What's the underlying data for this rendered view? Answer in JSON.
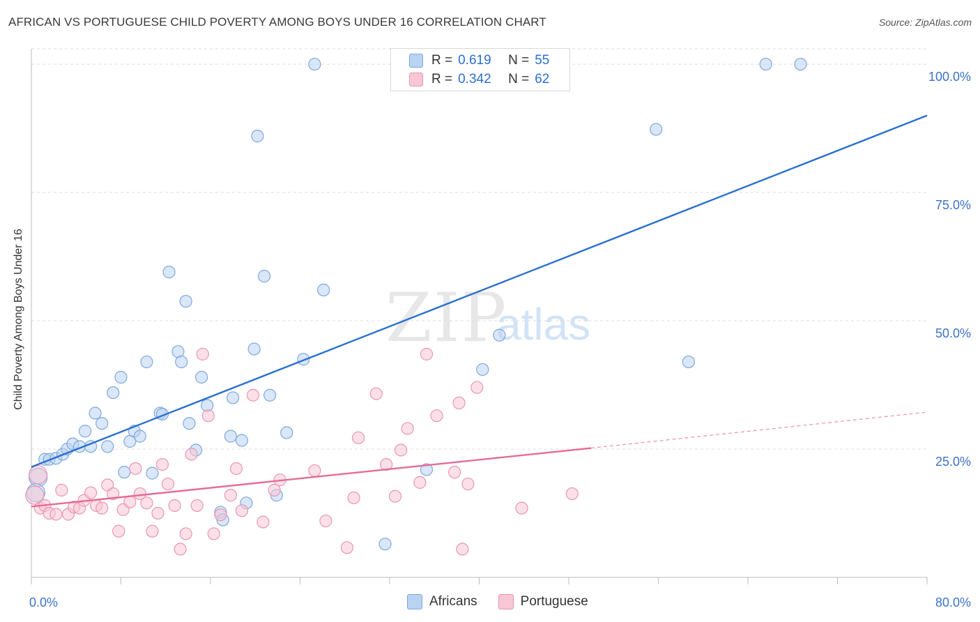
{
  "title": "AFRICAN VS PORTUGUESE CHILD POVERTY AMONG BOYS UNDER 16 CORRELATION CHART",
  "source": "Source: ZipAtlas.com",
  "watermark": {
    "zip": "ZIP",
    "atlas": "atlas"
  },
  "legend_top": [
    {
      "r_label": "R =",
      "r_value": "0.619",
      "n_label": "N =",
      "n_value": "55"
    },
    {
      "r_label": "R =",
      "r_value": "0.342",
      "n_label": "N =",
      "n_value": "62"
    }
  ],
  "bottom_legend": [
    "Africans",
    "Portuguese"
  ],
  "colors": {
    "africans_fill": "#b9d3f3",
    "africans_stroke": "#7ea8dc",
    "africans_line": "#2a6fd1",
    "portuguese_fill": "#f8c6d5",
    "portuguese_stroke": "#e896b2",
    "portuguese_line": "#e56b98",
    "tick_label": "#3b72c9",
    "grid": "#dddddd"
  },
  "chart_data": {
    "type": "scatter",
    "title": "AFRICAN VS PORTUGUESE CHILD POVERTY AMONG BOYS UNDER 16 CORRELATION CHART",
    "ylabel": "Child Poverty Among Boys Under 16",
    "xlabel": "",
    "xlim": [
      0,
      80
    ],
    "ylim": [
      0,
      103
    ],
    "x_tick_labels": [
      "0.0%",
      "80.0%"
    ],
    "y_ticks": [
      25,
      50,
      75,
      100
    ],
    "y_tick_labels": [
      "25.0%",
      "50.0%",
      "75.0%",
      "100.0%"
    ],
    "grid": "horizontal dashed",
    "series": [
      {
        "name": "Africans",
        "points": [
          [
            0.6,
            19.5
          ],
          [
            0.4,
            16.5
          ],
          [
            1.2,
            23.0
          ],
          [
            1.6,
            23.0
          ],
          [
            2.2,
            23.2
          ],
          [
            2.8,
            24.0
          ],
          [
            3.2,
            25.0
          ],
          [
            3.7,
            26.0
          ],
          [
            4.3,
            25.5
          ],
          [
            4.8,
            28.5
          ],
          [
            5.3,
            25.5
          ],
          [
            5.7,
            32.0
          ],
          [
            6.3,
            30.0
          ],
          [
            6.8,
            25.5
          ],
          [
            7.3,
            36.0
          ],
          [
            8.0,
            39.0
          ],
          [
            8.3,
            20.5
          ],
          [
            8.8,
            26.5
          ],
          [
            9.2,
            28.5
          ],
          [
            9.7,
            27.5
          ],
          [
            10.3,
            42.0
          ],
          [
            10.8,
            20.3
          ],
          [
            11.5,
            32.0
          ],
          [
            11.7,
            31.8
          ],
          [
            12.3,
            59.5
          ],
          [
            13.1,
            44.0
          ],
          [
            13.4,
            42.0
          ],
          [
            13.8,
            53.8
          ],
          [
            14.1,
            30.0
          ],
          [
            14.7,
            24.8
          ],
          [
            15.2,
            39.0
          ],
          [
            15.7,
            33.5
          ],
          [
            16.9,
            12.7
          ],
          [
            17.1,
            11.2
          ],
          [
            17.8,
            27.5
          ],
          [
            18.0,
            35.0
          ],
          [
            18.8,
            26.7
          ],
          [
            19.2,
            14.5
          ],
          [
            19.9,
            44.5
          ],
          [
            20.2,
            86.0
          ],
          [
            20.8,
            58.7
          ],
          [
            21.3,
            35.5
          ],
          [
            21.9,
            16.0
          ],
          [
            22.8,
            28.2
          ],
          [
            24.3,
            42.5
          ],
          [
            25.3,
            100.0
          ],
          [
            26.1,
            56.0
          ],
          [
            31.6,
            6.5
          ],
          [
            35.3,
            21.0
          ],
          [
            40.3,
            40.5
          ],
          [
            41.8,
            47.2
          ],
          [
            55.8,
            87.3
          ],
          [
            58.7,
            42.0
          ],
          [
            65.6,
            100.0
          ],
          [
            68.7,
            100.0
          ]
        ]
      },
      {
        "name": "Portuguese",
        "points": [
          [
            0.3,
            16.0
          ],
          [
            0.6,
            20.0
          ],
          [
            0.8,
            13.5
          ],
          [
            1.2,
            14.0
          ],
          [
            1.6,
            12.5
          ],
          [
            2.2,
            12.3
          ],
          [
            2.7,
            17.0
          ],
          [
            3.3,
            12.3
          ],
          [
            3.8,
            13.7
          ],
          [
            4.3,
            13.5
          ],
          [
            4.7,
            15.0
          ],
          [
            5.3,
            16.5
          ],
          [
            5.8,
            14.0
          ],
          [
            6.3,
            13.5
          ],
          [
            6.8,
            18.0
          ],
          [
            7.3,
            16.3
          ],
          [
            7.8,
            9.0
          ],
          [
            8.2,
            13.2
          ],
          [
            8.8,
            14.7
          ],
          [
            9.3,
            21.2
          ],
          [
            9.7,
            16.3
          ],
          [
            10.3,
            14.5
          ],
          [
            10.8,
            9.0
          ],
          [
            11.3,
            12.5
          ],
          [
            11.7,
            22.0
          ],
          [
            12.2,
            18.2
          ],
          [
            12.8,
            14.0
          ],
          [
            13.3,
            5.5
          ],
          [
            13.8,
            8.5
          ],
          [
            14.3,
            24.0
          ],
          [
            14.8,
            14.0
          ],
          [
            15.3,
            43.5
          ],
          [
            15.8,
            31.5
          ],
          [
            16.3,
            8.5
          ],
          [
            16.9,
            12.2
          ],
          [
            17.8,
            16.0
          ],
          [
            18.3,
            21.2
          ],
          [
            18.8,
            13.0
          ],
          [
            19.8,
            35.5
          ],
          [
            20.7,
            10.8
          ],
          [
            21.7,
            17.0
          ],
          [
            22.2,
            19.0
          ],
          [
            25.3,
            20.8
          ],
          [
            26.3,
            11.0
          ],
          [
            28.2,
            5.8
          ],
          [
            28.8,
            15.5
          ],
          [
            29.2,
            27.2
          ],
          [
            30.8,
            35.8
          ],
          [
            31.7,
            22.0
          ],
          [
            32.5,
            15.8
          ],
          [
            33.0,
            24.8
          ],
          [
            33.6,
            29.0
          ],
          [
            34.7,
            18.5
          ],
          [
            35.3,
            43.5
          ],
          [
            36.2,
            31.5
          ],
          [
            37.8,
            20.5
          ],
          [
            38.2,
            34.0
          ],
          [
            38.5,
            5.5
          ],
          [
            39.0,
            18.2
          ],
          [
            39.8,
            37.0
          ],
          [
            43.8,
            13.5
          ],
          [
            48.3,
            16.3
          ]
        ]
      }
    ],
    "trendlines": [
      {
        "series": "Africans",
        "x": [
          0,
          80
        ],
        "y": [
          21.5,
          90.0
        ],
        "style": "solid"
      },
      {
        "series": "Portuguese",
        "x": [
          0,
          50
        ],
        "y": [
          13.8,
          25.2
        ],
        "style": "solid",
        "extended_to": [
          80,
          32.2
        ],
        "extended_style": "dashed"
      }
    ],
    "legend": "top-center"
  }
}
